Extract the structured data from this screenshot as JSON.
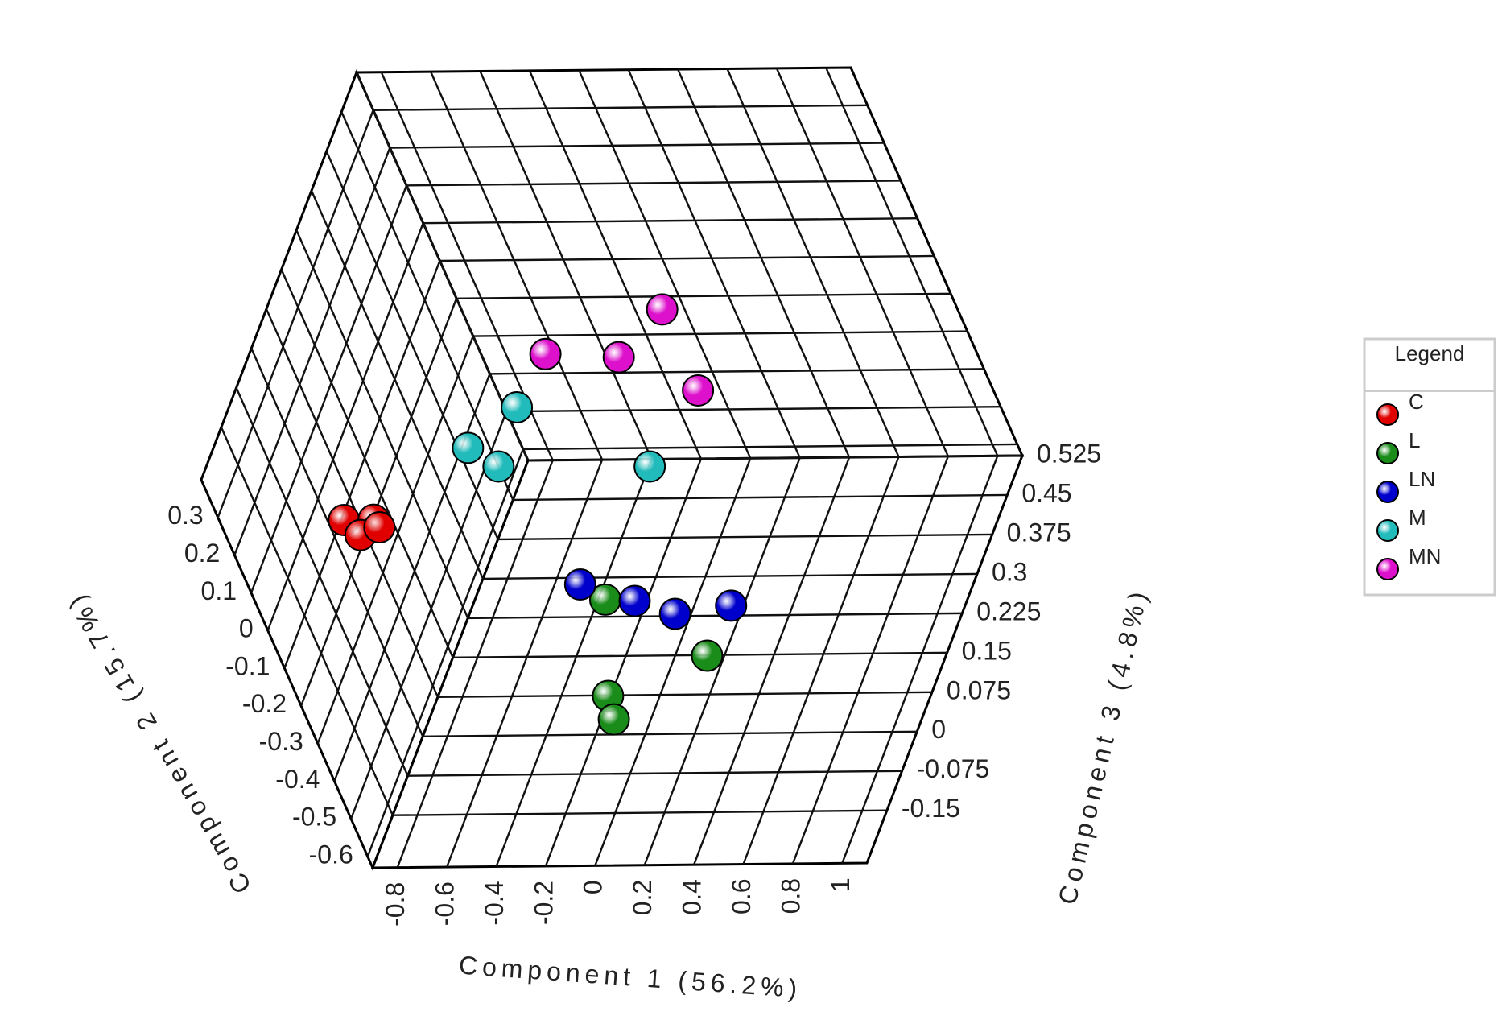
{
  "chart_data": {
    "type": "scatter3d",
    "x_label": "Component 1 (56.2%)",
    "y_label": "Component 2 (15.7%)",
    "z_label": "Component 3 (4.8%)",
    "xlim": [
      -0.9,
      1.1
    ],
    "ylim": [
      -0.63,
      0.4
    ],
    "zlim": [
      -0.25,
      0.525
    ],
    "xticks": [
      -0.8,
      -0.6,
      -0.4,
      -0.2,
      0,
      0.2,
      0.4,
      0.6,
      0.8,
      1
    ],
    "yticks": [
      -0.6,
      -0.5,
      -0.4,
      -0.3,
      -0.2,
      -0.1,
      0,
      0.1,
      0.2,
      0.3
    ],
    "zticks": [
      -0.15,
      -0.075,
      0,
      0.075,
      0.15,
      0.225,
      0.3,
      0.375,
      0.45,
      0.525
    ],
    "grid": true,
    "legend_title": "Legend",
    "legend": "right",
    "series": [
      {
        "name": "C",
        "color": "#e00000",
        "x": [
          -0.85,
          -0.73,
          -0.81,
          -0.72
        ],
        "y": [
          -0.07,
          -0.07,
          -0.11,
          -0.09
        ],
        "z": [
          0.01,
          0.01,
          0.01,
          0.01
        ]
      },
      {
        "name": "L",
        "color": "#1a8c1a",
        "x": [
          -0.27,
          0.18,
          -0.16,
          -0.1
        ],
        "y": [
          -0.55,
          -0.59,
          -0.59,
          -0.59
        ],
        "z": [
          0.2,
          0.12,
          0.045,
          0.0
        ]
      },
      {
        "name": "LN",
        "color": "#0000cc",
        "x": [
          -0.37,
          -0.18,
          -0.04,
          0.2
        ],
        "y": [
          -0.53,
          -0.575,
          -0.61,
          -0.59
        ],
        "z": [
          0.215,
          0.215,
          0.215,
          0.215
        ]
      },
      {
        "name": "M",
        "color": "#22bbbb",
        "x": [
          -0.65,
          -0.71,
          -0.62,
          -0.22
        ],
        "y": [
          -0.33,
          -0.27,
          -0.32,
          -0.49
        ],
        "z": [
          0.41,
          0.29,
          0.29,
          0.41
        ]
      },
      {
        "name": "MN",
        "color": "#dd11cc",
        "x": [
          0.11,
          -0.44,
          -0.15,
          0.11
        ],
        "y": [
          -0.075,
          -0.19,
          -0.2,
          -0.29
        ],
        "z": [
          0.41,
          0.41,
          0.41,
          0.41
        ]
      }
    ]
  }
}
